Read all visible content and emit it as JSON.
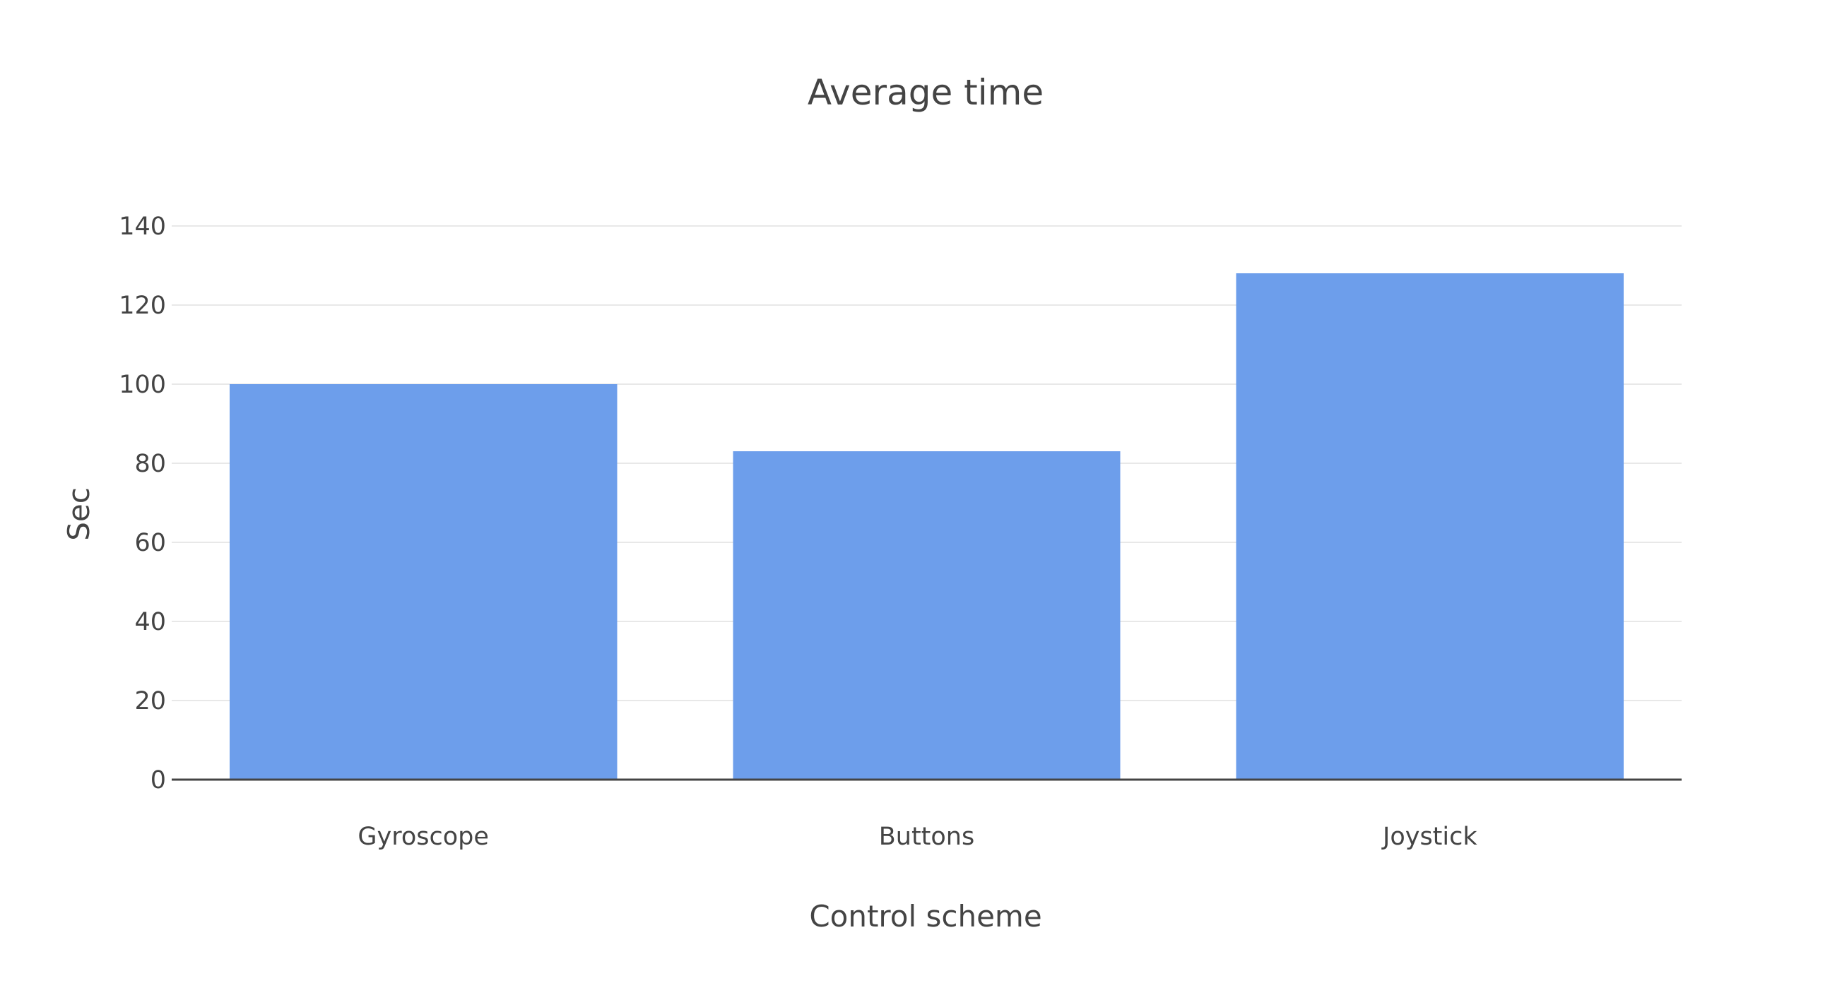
{
  "chart_data": {
    "type": "bar",
    "title": "Average time",
    "xlabel": "Control scheme",
    "ylabel": "Sec",
    "categories": [
      "Gyroscope",
      "Buttons",
      "Joystick"
    ],
    "values": [
      100,
      83,
      128
    ],
    "ylim": [
      0,
      140
    ],
    "yticks": [
      0,
      20,
      40,
      60,
      80,
      100,
      120,
      140
    ],
    "grid": true,
    "bar_color": "#6d9eeb"
  }
}
